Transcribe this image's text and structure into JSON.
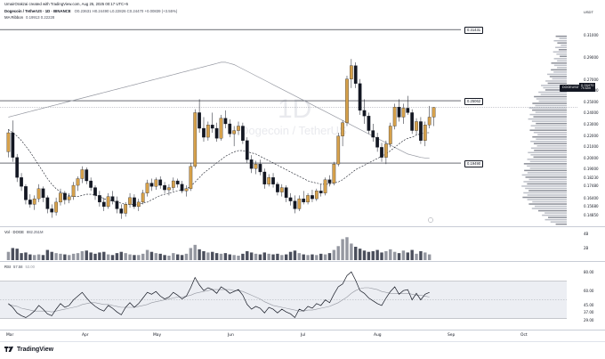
{
  "header": {
    "created_by": "UmairOrakzai created with TradingView.com, Aug 25, 2025 00:17 UTC+5",
    "symbol_line": "Dogecoin / TetherUS · 1D · BINANCE",
    "ohlc": "O0.23631 H0.24490 L0.22826 C0.24470 +0.00839 (+3.55%)",
    "ma_ribbon": "MA Ribbon",
    "ma_values": "0.19913  0.22228"
  },
  "watermark": {
    "timeframe": "1D",
    "name": "Dogecoin / TetherUS"
  },
  "price_axis": {
    "currency": "USDT",
    "ticks": [
      "0.31000",
      "0.29000",
      "0.27000",
      "0.26000",
      "0.25000",
      "0.24000",
      "0.23000",
      "0.22000",
      "0.21000",
      "0.20000",
      "0.19000",
      "0.18230",
      "0.17480",
      "0.16400",
      "0.15680",
      "0.14850"
    ]
  },
  "levels": [
    {
      "label": "0.31431",
      "price": 0.31431
    },
    {
      "label": "0.25062",
      "price": 0.25062
    },
    {
      "label": "0.19490",
      "price": 0.1949
    }
  ],
  "current_price": {
    "symbol": "DOGEUSDT",
    "price": "0.24470",
    "time_left": "7h 42m"
  },
  "volume_pane": {
    "title": "Vol · DOGE",
    "value": "882.251M",
    "ticks": [
      "4B",
      "2B"
    ]
  },
  "rsi_pane": {
    "title": "RSI",
    "value": "57.58",
    "ma": "53.00",
    "ticks": [
      "80.00",
      "60.00",
      "45.00",
      "37.00",
      "29.00"
    ],
    "band": [
      70,
      30
    ]
  },
  "time_axis": [
    "Mar",
    "Apr",
    "May",
    "Jun",
    "Jul",
    "Aug",
    "Sep",
    "Oct"
  ],
  "footer": {
    "brand": "TradingView"
  },
  "colors": {
    "up": "#d6a14b",
    "down": "#131722",
    "ma_fast": "#131722",
    "ma_slow": "#9598a1",
    "profile": "#9598a1"
  },
  "chart_data": {
    "type": "candlestick",
    "timeframe": "1D",
    "ylim": [
      0.14,
      0.32
    ],
    "ohlc": [
      [
        0.205,
        0.225,
        0.2,
        0.222
      ],
      [
        0.222,
        0.233,
        0.196,
        0.2
      ],
      [
        0.2,
        0.203,
        0.178,
        0.182
      ],
      [
        0.182,
        0.186,
        0.17,
        0.174
      ],
      [
        0.174,
        0.176,
        0.158,
        0.162
      ],
      [
        0.162,
        0.167,
        0.155,
        0.158
      ],
      [
        0.158,
        0.166,
        0.153,
        0.163
      ],
      [
        0.163,
        0.176,
        0.16,
        0.172
      ],
      [
        0.172,
        0.174,
        0.16,
        0.164
      ],
      [
        0.164,
        0.166,
        0.15,
        0.154
      ],
      [
        0.154,
        0.158,
        0.146,
        0.151
      ],
      [
        0.151,
        0.164,
        0.148,
        0.16
      ],
      [
        0.16,
        0.172,
        0.157,
        0.168
      ],
      [
        0.168,
        0.17,
        0.158,
        0.162
      ],
      [
        0.162,
        0.168,
        0.159,
        0.165
      ],
      [
        0.165,
        0.178,
        0.162,
        0.175
      ],
      [
        0.175,
        0.183,
        0.17,
        0.181
      ],
      [
        0.181,
        0.192,
        0.177,
        0.189
      ],
      [
        0.189,
        0.191,
        0.176,
        0.179
      ],
      [
        0.179,
        0.182,
        0.17,
        0.173
      ],
      [
        0.173,
        0.175,
        0.162,
        0.166
      ],
      [
        0.166,
        0.17,
        0.156,
        0.16
      ],
      [
        0.16,
        0.164,
        0.152,
        0.156
      ],
      [
        0.156,
        0.168,
        0.154,
        0.165
      ],
      [
        0.165,
        0.17,
        0.158,
        0.161
      ],
      [
        0.161,
        0.165,
        0.15,
        0.154
      ],
      [
        0.154,
        0.158,
        0.145,
        0.15
      ],
      [
        0.15,
        0.16,
        0.147,
        0.158
      ],
      [
        0.158,
        0.168,
        0.155,
        0.164
      ],
      [
        0.164,
        0.167,
        0.154,
        0.156
      ],
      [
        0.156,
        0.163,
        0.152,
        0.16
      ],
      [
        0.16,
        0.171,
        0.158,
        0.168
      ],
      [
        0.168,
        0.18,
        0.165,
        0.177
      ],
      [
        0.177,
        0.181,
        0.17,
        0.174
      ],
      [
        0.174,
        0.182,
        0.171,
        0.18
      ],
      [
        0.18,
        0.183,
        0.172,
        0.175
      ],
      [
        0.175,
        0.178,
        0.168,
        0.171
      ],
      [
        0.171,
        0.176,
        0.166,
        0.173
      ],
      [
        0.173,
        0.182,
        0.17,
        0.179
      ],
      [
        0.179,
        0.181,
        0.173,
        0.176
      ],
      [
        0.176,
        0.179,
        0.168,
        0.17
      ],
      [
        0.17,
        0.175,
        0.165,
        0.172
      ],
      [
        0.172,
        0.195,
        0.17,
        0.192
      ],
      [
        0.192,
        0.243,
        0.19,
        0.24
      ],
      [
        0.24,
        0.252,
        0.222,
        0.226
      ],
      [
        0.226,
        0.236,
        0.214,
        0.218
      ],
      [
        0.218,
        0.232,
        0.215,
        0.229
      ],
      [
        0.229,
        0.24,
        0.222,
        0.226
      ],
      [
        0.226,
        0.231,
        0.214,
        0.217
      ],
      [
        0.217,
        0.238,
        0.215,
        0.235
      ],
      [
        0.235,
        0.242,
        0.226,
        0.23
      ],
      [
        0.23,
        0.234,
        0.218,
        0.221
      ],
      [
        0.221,
        0.228,
        0.21,
        0.224
      ],
      [
        0.224,
        0.232,
        0.22,
        0.228
      ],
      [
        0.228,
        0.231,
        0.212,
        0.215
      ],
      [
        0.215,
        0.218,
        0.195,
        0.198
      ],
      [
        0.198,
        0.202,
        0.186,
        0.19
      ],
      [
        0.19,
        0.197,
        0.185,
        0.194
      ],
      [
        0.194,
        0.198,
        0.184,
        0.187
      ],
      [
        0.187,
        0.19,
        0.172,
        0.176
      ],
      [
        0.176,
        0.185,
        0.174,
        0.182
      ],
      [
        0.182,
        0.186,
        0.173,
        0.176
      ],
      [
        0.176,
        0.178,
        0.166,
        0.169
      ],
      [
        0.169,
        0.176,
        0.165,
        0.173
      ],
      [
        0.173,
        0.175,
        0.16,
        0.164
      ],
      [
        0.164,
        0.168,
        0.157,
        0.161
      ],
      [
        0.161,
        0.166,
        0.15,
        0.154
      ],
      [
        0.154,
        0.166,
        0.152,
        0.163
      ],
      [
        0.163,
        0.17,
        0.158,
        0.16
      ],
      [
        0.16,
        0.168,
        0.158,
        0.166
      ],
      [
        0.166,
        0.171,
        0.16,
        0.163
      ],
      [
        0.163,
        0.172,
        0.161,
        0.17
      ],
      [
        0.17,
        0.176,
        0.165,
        0.168
      ],
      [
        0.168,
        0.182,
        0.166,
        0.18
      ],
      [
        0.18,
        0.184,
        0.174,
        0.177
      ],
      [
        0.177,
        0.196,
        0.175,
        0.194
      ],
      [
        0.194,
        0.222,
        0.192,
        0.219
      ],
      [
        0.219,
        0.233,
        0.21,
        0.231
      ],
      [
        0.231,
        0.273,
        0.228,
        0.27
      ],
      [
        0.27,
        0.288,
        0.262,
        0.282
      ],
      [
        0.282,
        0.285,
        0.262,
        0.266
      ],
      [
        0.266,
        0.27,
        0.238,
        0.242
      ],
      [
        0.242,
        0.252,
        0.23,
        0.237
      ],
      [
        0.237,
        0.24,
        0.221,
        0.224
      ],
      [
        0.224,
        0.23,
        0.214,
        0.218
      ],
      [
        0.218,
        0.222,
        0.205,
        0.209
      ],
      [
        0.209,
        0.213,
        0.196,
        0.2
      ],
      [
        0.2,
        0.215,
        0.194,
        0.212
      ],
      [
        0.212,
        0.231,
        0.209,
        0.228
      ],
      [
        0.228,
        0.248,
        0.225,
        0.245
      ],
      [
        0.245,
        0.252,
        0.232,
        0.236
      ],
      [
        0.236,
        0.248,
        0.23,
        0.244
      ],
      [
        0.244,
        0.255,
        0.238,
        0.24
      ],
      [
        0.24,
        0.243,
        0.221,
        0.224
      ],
      [
        0.224,
        0.235,
        0.22,
        0.232
      ],
      [
        0.232,
        0.236,
        0.212,
        0.215
      ],
      [
        0.215,
        0.232,
        0.21,
        0.229
      ],
      [
        0.229,
        0.246,
        0.226,
        0.236
      ],
      [
        0.236,
        0.245,
        0.228,
        0.2447
      ]
    ],
    "volume": [
      1.3,
      1.9,
      1.8,
      1.1,
      1.2,
      0.9,
      0.8,
      0.9,
      0.8,
      1.6,
      1.3,
      1.1,
      1.0,
      0.9,
      0.8,
      1.0,
      1.1,
      1.4,
      1.5,
      1.2,
      1.0,
      1.2,
      1.3,
      0.9,
      0.8,
      1.1,
      1.3,
      1.1,
      0.9,
      0.8,
      0.8,
      1.0,
      1.6,
      1.3,
      1.1,
      1.0,
      0.8,
      0.7,
      1.1,
      0.9,
      0.8,
      1.0,
      1.9,
      2.4,
      1.7,
      1.4,
      1.2,
      1.3,
      1.1,
      1.0,
      1.1,
      0.9,
      0.8,
      0.7,
      1.0,
      1.4,
      1.2,
      1.0,
      0.9,
      1.2,
      1.0,
      0.9,
      1.0,
      0.8,
      0.9,
      1.3,
      1.5,
      1.1,
      0.9,
      0.8,
      0.9,
      0.8,
      1.0,
      0.9,
      1.1,
      1.6,
      2.2,
      3.3,
      3.6,
      2.6,
      2.1,
      1.8,
      1.5,
      1.3,
      1.4,
      1.6,
      1.2,
      1.4,
      1.7,
      1.3,
      1.1,
      1.5,
      1.2,
      1.6,
      1.0,
      1.4,
      1.2,
      0.9
    ],
    "ma_fast": [
      0.225,
      0.222,
      0.219,
      0.215,
      0.21,
      0.205,
      0.199,
      0.193,
      0.187,
      0.181,
      0.176,
      0.172,
      0.169,
      0.167,
      0.166,
      0.165,
      0.165,
      0.166,
      0.167,
      0.167,
      0.166,
      0.165,
      0.163,
      0.162,
      0.161,
      0.16,
      0.159,
      0.158,
      0.158,
      0.158,
      0.158,
      0.159,
      0.16,
      0.162,
      0.164,
      0.166,
      0.167,
      0.168,
      0.169,
      0.17,
      0.171,
      0.172,
      0.174,
      0.178,
      0.182,
      0.186,
      0.189,
      0.192,
      0.195,
      0.198,
      0.201,
      0.203,
      0.205,
      0.206,
      0.206,
      0.205,
      0.204,
      0.203,
      0.201,
      0.199,
      0.197,
      0.195,
      0.193,
      0.191,
      0.189,
      0.187,
      0.185,
      0.183,
      0.181,
      0.179,
      0.178,
      0.177,
      0.176,
      0.176,
      0.176,
      0.177,
      0.178,
      0.18,
      0.183,
      0.186,
      0.189,
      0.191,
      0.193,
      0.195,
      0.197,
      0.199,
      0.201,
      0.203,
      0.206,
      0.209,
      0.212,
      0.215,
      0.217,
      0.218,
      0.22,
      0.221,
      0.222,
      0.222
    ],
    "ma_slow": [
      0.236,
      0.237,
      0.238,
      0.239,
      0.24,
      0.241,
      0.242,
      0.243,
      0.244,
      0.245,
      0.246,
      0.247,
      0.248,
      0.249,
      0.25,
      0.251,
      0.252,
      0.253,
      0.254,
      0.255,
      0.256,
      0.257,
      0.258,
      0.259,
      0.26,
      0.261,
      0.262,
      0.263,
      0.264,
      0.265,
      0.266,
      0.267,
      0.268,
      0.269,
      0.27,
      0.271,
      0.272,
      0.273,
      0.274,
      0.275,
      0.276,
      0.277,
      0.278,
      0.279,
      0.28,
      0.281,
      0.282,
      0.283,
      0.284,
      0.285,
      0.285,
      0.284,
      0.283,
      0.281,
      0.279,
      0.277,
      0.275,
      0.273,
      0.271,
      0.269,
      0.267,
      0.265,
      0.263,
      0.261,
      0.259,
      0.257,
      0.255,
      0.253,
      0.251,
      0.249,
      0.247,
      0.245,
      0.243,
      0.241,
      0.239,
      0.237,
      0.235,
      0.233,
      0.231,
      0.229,
      0.227,
      0.225,
      0.223,
      0.221,
      0.219,
      0.217,
      0.215,
      0.213,
      0.211,
      0.209,
      0.207,
      0.205,
      0.203,
      0.202,
      0.201,
      0.2,
      0.1995,
      0.1991
    ],
    "rsi": [
      46,
      42,
      36,
      33,
      31,
      34,
      38,
      44,
      40,
      35,
      33,
      40,
      46,
      42,
      44,
      50,
      54,
      58,
      52,
      47,
      43,
      40,
      38,
      44,
      41,
      37,
      34,
      42,
      47,
      42,
      46,
      52,
      58,
      56,
      59,
      54,
      51,
      53,
      58,
      55,
      51,
      54,
      63,
      74,
      66,
      60,
      63,
      61,
      57,
      64,
      61,
      57,
      59,
      61,
      55,
      45,
      40,
      43,
      41,
      36,
      42,
      40,
      36,
      40,
      37,
      35,
      31,
      40,
      38,
      43,
      41,
      46,
      44,
      50,
      47,
      56,
      64,
      67,
      76,
      80,
      71,
      60,
      57,
      52,
      49,
      46,
      44,
      52,
      59,
      64,
      56,
      60,
      61,
      50,
      57,
      50,
      56,
      58
    ],
    "rsi_ma": [
      45,
      44,
      43,
      41,
      40,
      39,
      38,
      38,
      38,
      38,
      37,
      38,
      39,
      40,
      41,
      42,
      43,
      45,
      46,
      47,
      47,
      46,
      45,
      45,
      44,
      43,
      42,
      42,
      42,
      42,
      43,
      44,
      45,
      47,
      48,
      49,
      50,
      51,
      52,
      53,
      53,
      54,
      55,
      57,
      58,
      59,
      60,
      61,
      61,
      61,
      61,
      61,
      60,
      60,
      59,
      57,
      55,
      53,
      51,
      48,
      46,
      44,
      43,
      42,
      41,
      40,
      39,
      38,
      38,
      39,
      39,
      40,
      41,
      42,
      43,
      45,
      47,
      50,
      53,
      57,
      60,
      62,
      63,
      63,
      62,
      61,
      59,
      58,
      57,
      57,
      57,
      57,
      57,
      56,
      55,
      55,
      54,
      53
    ]
  }
}
